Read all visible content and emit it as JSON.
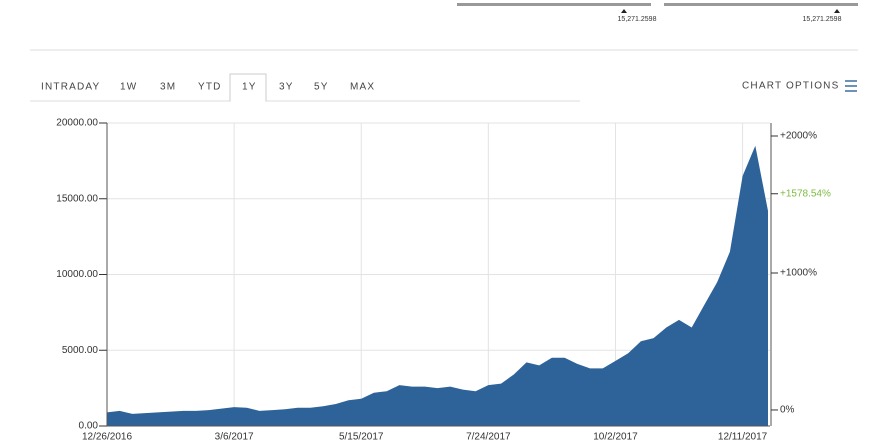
{
  "range_bars": [
    {
      "label": "15,271.2598"
    },
    {
      "label": "15,271.2598"
    }
  ],
  "tabs": [
    "INTRADAY",
    "1W",
    "3M",
    "YTD",
    "1Y",
    "3Y",
    "5Y",
    "MAX"
  ],
  "active_tab": 4,
  "chart_options": "CHART OPTIONS",
  "chart_data": {
    "type": "area",
    "color": "#2e6399",
    "grid": true,
    "x": [
      "12/26/2016",
      "1/2/2017",
      "1/9/2017",
      "1/16/2017",
      "1/23/2017",
      "1/30/2017",
      "2/6/2017",
      "2/13/2017",
      "2/20/2017",
      "2/27/2017",
      "3/6/2017",
      "3/13/2017",
      "3/20/2017",
      "3/27/2017",
      "4/3/2017",
      "4/10/2017",
      "4/17/2017",
      "4/24/2017",
      "5/1/2017",
      "5/8/2017",
      "5/15/2017",
      "5/22/2017",
      "5/29/2017",
      "6/5/2017",
      "6/12/2017",
      "6/19/2017",
      "6/26/2017",
      "7/3/2017",
      "7/10/2017",
      "7/17/2017",
      "7/24/2017",
      "7/31/2017",
      "8/7/2017",
      "8/14/2017",
      "8/21/2017",
      "8/28/2017",
      "9/4/2017",
      "9/11/2017",
      "9/18/2017",
      "9/25/2017",
      "10/2/2017",
      "10/9/2017",
      "10/16/2017",
      "10/23/2017",
      "10/30/2017",
      "11/6/2017",
      "11/13/2017",
      "11/20/2017",
      "11/27/2017",
      "12/4/2017",
      "12/11/2017",
      "12/18/2017",
      "12/25/2017"
    ],
    "values": [
      900,
      1000,
      800,
      850,
      900,
      950,
      1000,
      1000,
      1050,
      1150,
      1250,
      1200,
      1000,
      1050,
      1100,
      1200,
      1200,
      1300,
      1450,
      1700,
      1800,
      2200,
      2300,
      2700,
      2600,
      2600,
      2500,
      2600,
      2400,
      2300,
      2700,
      2800,
      3400,
      4200,
      4000,
      4500,
      4500,
      4100,
      3800,
      3800,
      4300,
      4800,
      5600,
      5800,
      6500,
      7000,
      6500,
      8000,
      9500,
      11500,
      16500,
      18500,
      14200
    ],
    "xticks": [
      "12/26/2016",
      "3/6/2017",
      "5/15/2017",
      "7/24/2017",
      "10/2/2017",
      "12/11/2017"
    ],
    "ylim": [
      0,
      20000
    ],
    "yticks": [
      {
        "value": 0,
        "label": "0.00"
      },
      {
        "value": 5000,
        "label": "5000.00"
      },
      {
        "value": 10000,
        "label": "10000.00"
      },
      {
        "value": 15000,
        "label": "15000.00"
      },
      {
        "value": 20000,
        "label": "20000.00"
      }
    ],
    "y2lim": [
      -117,
      2095
    ],
    "y2ticks": [
      {
        "value": 0,
        "label": "0%"
      },
      {
        "value": 1000,
        "label": "+1000%"
      },
      {
        "value": 1578.54,
        "label": "+1578.54%",
        "color": "#7dbb42"
      },
      {
        "value": 2000,
        "label": "+2000%"
      }
    ]
  }
}
